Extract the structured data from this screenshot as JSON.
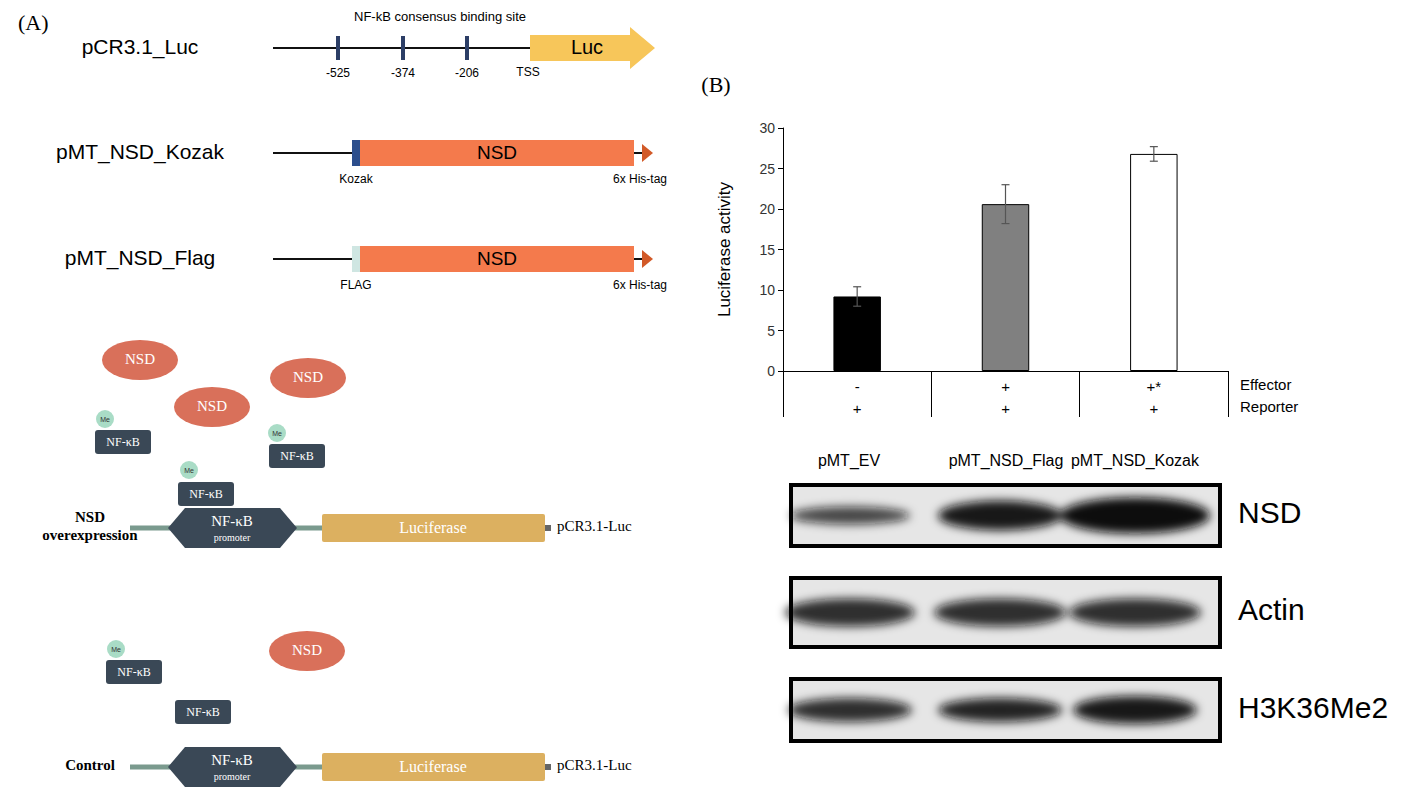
{
  "panel_a": {
    "label": "(A)",
    "constructs": [
      {
        "name": "pCR3.1_Luc",
        "sites_title": "NF-kB consensus binding site",
        "sites": [
          "-525",
          "-374",
          "-206"
        ],
        "tss": "TSS",
        "gene": "Luc"
      },
      {
        "name": "pMT_NSD_Kozak",
        "leader": "Kozak",
        "gene": "NSD",
        "tag": "6x His-tag"
      },
      {
        "name": "pMT_NSD_Flag",
        "leader": "FLAG",
        "gene": "NSD",
        "tag": "6x His-tag"
      }
    ],
    "schemes": [
      {
        "label": [
          "NSD",
          "overexpression"
        ],
        "protein": "NSD",
        "factor": "NF-κB",
        "methyl": "Me",
        "promoter": [
          "NF-κB",
          "promoter"
        ],
        "reporter_gene": "Luciferase",
        "plasmid": "pCR3.1-Luc"
      },
      {
        "label": [
          "Control"
        ],
        "protein": "NSD",
        "factor": "NF-κB",
        "methyl": "Me",
        "promoter": [
          "NF-κB",
          "promoter"
        ],
        "reporter_gene": "Luciferase",
        "plasmid": "pCR3.1-Luc"
      }
    ]
  },
  "panel_b_label": "(B)",
  "chart_data": {
    "type": "bar",
    "y_label": "Luciferase activity",
    "categories": [
      "-",
      "+",
      "+*"
    ],
    "category_title": "Effector",
    "second_categories": [
      "+",
      "+",
      "+"
    ],
    "second_category_title": "Reporter",
    "values": [
      9.2,
      20.6,
      26.8
    ],
    "errors": [
      1.2,
      2.4,
      0.9
    ],
    "colors": [
      "#000000",
      "#808080",
      "#ffffff"
    ],
    "ylim": [
      0,
      30
    ],
    "yticks": [
      0,
      5,
      10,
      15,
      20,
      25,
      30
    ],
    "grid": false
  },
  "blot": {
    "lanes": [
      "pMT_EV",
      "pMT_NSD_Flag",
      "pMT_NSD_Kozak"
    ],
    "rows": [
      "NSD",
      "Actin",
      "H3K36Me2"
    ]
  }
}
